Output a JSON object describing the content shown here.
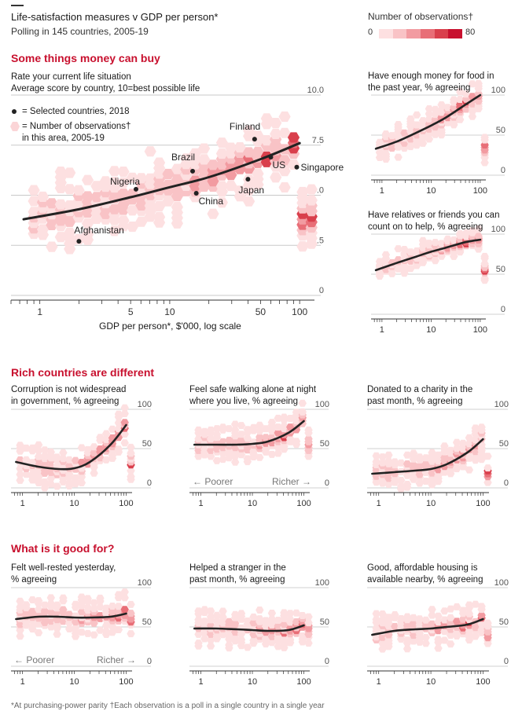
{
  "header": {
    "title": "Life-satisfaction measures v GDP per person*",
    "subtitle": "Polling in 145 countries, 2005-19"
  },
  "legend": {
    "title": "Number of observations†",
    "min_label": "0",
    "max_label": "80",
    "colors": [
      "#fde0e1",
      "#f9c3c6",
      "#f29ba1",
      "#e86e77",
      "#d93f4c",
      "#c8102e"
    ]
  },
  "sections": {
    "s1": "Some things money can buy",
    "s2": "Rich countries are different",
    "s3": "What is it good for?"
  },
  "footnote": "*At purchasing-power parity †Each observation is a poll in a single country in a single year",
  "colors": {
    "accent": "#c8102e",
    "line": "#222222",
    "hex_light": "#fbd5d7"
  },
  "main_chart": {
    "title_line1": "Rate your current life situation",
    "title_line2": "Average score by country, 10=best possible life",
    "key_dot": "= Selected countries, 2018",
    "key_hex_1": "= Number of observations†",
    "key_hex_2": "in this area, 2005-19",
    "xlabel": "GDP per person*, $'000, log scale",
    "xticks": [
      "1",
      "5",
      "10",
      "50",
      "100"
    ],
    "yticks": [
      "0",
      "2.5",
      "5.0",
      "7.5",
      "10.0"
    ]
  },
  "panel_labels": {
    "poorer": "← Poorer",
    "richer": "Richer →"
  },
  "chart_data": [
    {
      "type": "scatter",
      "title": "Rate your current life situation",
      "subtitle": "Average score by country, 10=best possible life",
      "xlabel": "GDP per person*, $'000, log scale",
      "x_scale": "log",
      "xlim": [
        0.6,
        130
      ],
      "ylim": [
        0,
        10
      ],
      "points": [
        {
          "label": "Finland",
          "x": 45,
          "y": 7.8
        },
        {
          "label": "US",
          "x": 60,
          "y": 6.9
        },
        {
          "label": "Singapore",
          "x": 95,
          "y": 6.4
        },
        {
          "label": "Brazil",
          "x": 15,
          "y": 6.2
        },
        {
          "label": "Japan",
          "x": 40,
          "y": 5.8
        },
        {
          "label": "China",
          "x": 16,
          "y": 5.1
        },
        {
          "label": "Nigeria",
          "x": 5.5,
          "y": 5.3
        },
        {
          "label": "Afghanistan",
          "x": 2.0,
          "y": 2.7
        }
      ],
      "trend": {
        "x": [
          0.75,
          2,
          5,
          10,
          20,
          50,
          100
        ],
        "y": [
          3.8,
          4.3,
          4.9,
          5.4,
          5.9,
          6.8,
          7.6
        ]
      }
    },
    {
      "type": "line",
      "title": "Have enough money for food in the past year, % agreeing",
      "x_scale": "log",
      "xlim": [
        0.6,
        130
      ],
      "ylim": [
        0,
        100
      ],
      "trend": {
        "x": [
          0.75,
          2,
          5,
          10,
          20,
          50,
          100
        ],
        "y": [
          33,
          42,
          53,
          62,
          72,
          88,
          100
        ]
      }
    },
    {
      "type": "line",
      "title": "Have relatives or friends you can count on to help, % agreeing",
      "x_scale": "log",
      "xlim": [
        0.6,
        130
      ],
      "ylim": [
        0,
        100
      ],
      "trend": {
        "x": [
          0.75,
          2,
          5,
          10,
          20,
          50,
          100
        ],
        "y": [
          55,
          64,
          72,
          78,
          83,
          90,
          93
        ]
      }
    },
    {
      "type": "line",
      "title": "Corruption is not widespread in government, % agreeing",
      "x_scale": "log",
      "xlim": [
        0.6,
        130
      ],
      "ylim": [
        0,
        100
      ],
      "trend": {
        "x": [
          0.75,
          2,
          5,
          10,
          20,
          50,
          100
        ],
        "y": [
          33,
          27,
          24,
          25,
          33,
          55,
          80
        ]
      }
    },
    {
      "type": "line",
      "title": "Feel safe walking alone at night where you live, % agreeing",
      "x_scale": "log",
      "xlim": [
        0.6,
        130
      ],
      "ylim": [
        0,
        100
      ],
      "trend": {
        "x": [
          0.75,
          2,
          5,
          10,
          20,
          50,
          100
        ],
        "y": [
          55,
          55,
          55,
          56,
          59,
          70,
          85
        ]
      }
    },
    {
      "type": "line",
      "title": "Donated to a charity in the past month, % agreeing",
      "x_scale": "log",
      "xlim": [
        0.6,
        130
      ],
      "ylim": [
        0,
        100
      ],
      "trend": {
        "x": [
          0.75,
          2,
          5,
          10,
          20,
          50,
          100
        ],
        "y": [
          18,
          20,
          22,
          24,
          30,
          45,
          62
        ]
      }
    },
    {
      "type": "line",
      "title": "Felt well-rested yesterday, % agreeing",
      "x_scale": "log",
      "xlim": [
        0.6,
        130
      ],
      "ylim": [
        0,
        100
      ],
      "trend": {
        "x": [
          0.75,
          2,
          5,
          10,
          20,
          50,
          100
        ],
        "y": [
          60,
          63,
          63,
          62,
          62,
          63,
          67
        ]
      }
    },
    {
      "type": "line",
      "title": "Helped a stranger in the past month, % agreeing",
      "x_scale": "log",
      "xlim": [
        0.6,
        130
      ],
      "ylim": [
        0,
        100
      ],
      "trend": {
        "x": [
          0.75,
          2,
          5,
          10,
          20,
          50,
          100
        ],
        "y": [
          48,
          48,
          47,
          46,
          45,
          46,
          52
        ]
      }
    },
    {
      "type": "line",
      "title": "Good, affordable housing is available nearby, % agreeing",
      "x_scale": "log",
      "xlim": [
        0.6,
        130
      ],
      "ylim": [
        0,
        100
      ],
      "trend": {
        "x": [
          0.75,
          2,
          5,
          10,
          20,
          50,
          100
        ],
        "y": [
          40,
          45,
          47,
          48,
          50,
          53,
          60
        ]
      }
    }
  ],
  "small_panels": [
    {
      "key": "food",
      "line1": "Have enough money for food in",
      "line2": "the past year, % agreeing",
      "ticks_y": [
        "100",
        "50",
        "0"
      ],
      "ticks_x": [
        "1",
        "10",
        "100"
      ]
    },
    {
      "key": "friends",
      "line1": "Have relatives or friends you can",
      "line2": "count on to help, % agreeing",
      "ticks_y": [
        "100",
        "50",
        "0"
      ],
      "ticks_x": [
        "1",
        "10",
        "100"
      ]
    },
    {
      "key": "corruption",
      "line1": "Corruption is not widespread",
      "line2": "in government, % agreeing",
      "ticks_y": [
        "100",
        "50",
        "0"
      ],
      "ticks_x": [
        "1",
        "10",
        "100"
      ]
    },
    {
      "key": "safe",
      "line1": "Feel safe walking alone at night",
      "line2": "where you live, % agreeing",
      "ticks_y": [
        "100",
        "50",
        "0"
      ],
      "ticks_x": [
        "1",
        "10",
        "100"
      ]
    },
    {
      "key": "charity",
      "line1": "Donated to a charity in the",
      "line2": "past month, % agreeing",
      "ticks_y": [
        "100",
        "50",
        "0"
      ],
      "ticks_x": [
        "1",
        "10",
        "100"
      ]
    },
    {
      "key": "rested",
      "line1": "Felt well-rested yesterday,",
      "line2": "% agreeing",
      "ticks_y": [
        "100",
        "50",
        "0"
      ],
      "ticks_x": [
        "1",
        "10",
        "100"
      ]
    },
    {
      "key": "stranger",
      "line1": "Helped a stranger in the",
      "line2": "past month, % agreeing",
      "ticks_y": [
        "100",
        "50",
        "0"
      ],
      "ticks_x": [
        "1",
        "10",
        "100"
      ]
    },
    {
      "key": "housing",
      "line1": "Good, affordable housing is",
      "line2": "available nearby, % agreeing",
      "ticks_y": [
        "100",
        "50",
        "0"
      ],
      "ticks_x": [
        "1",
        "10",
        "100"
      ]
    }
  ]
}
